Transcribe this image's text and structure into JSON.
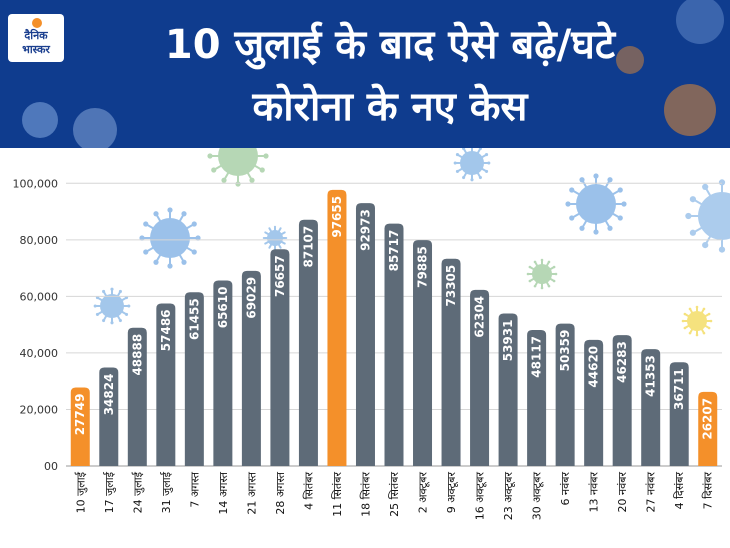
{
  "header": {
    "title_line1": "10 जुलाई के बाद ऐसे बढ़े/घटे",
    "title_line2": "कोरोना के नए केस",
    "logo_line1": "दैनिक",
    "logo_line2": "भास्कर"
  },
  "colors": {
    "header_bg": "#0f3c8e",
    "bar_default": "#5e6b78",
    "bar_highlight": "#f4902a",
    "virus_blue": "#4a90d9",
    "virus_green": "#7cb77a",
    "virus_yellow": "#f2d648"
  },
  "chart_data": {
    "type": "bar",
    "title": "10 जुलाई के बाद ऐसे बढ़े/घटे कोरोना के नए केस",
    "xlabel": "",
    "ylabel": "",
    "ylim": [
      0,
      110000
    ],
    "yticks": [
      0,
      20000,
      40000,
      60000,
      80000,
      100000
    ],
    "ytick_labels": [
      "00",
      "20,000",
      "40,000",
      "60,000",
      "80,000",
      "100,000"
    ],
    "grid": true,
    "categories": [
      "10 जुलाई",
      "17 जुलाई",
      "24 जुलाई",
      "31 जुलाई",
      "7 अगस्त",
      "14 अगस्त",
      "21 अगस्त",
      "28 अगस्त",
      "4 सितंबर",
      "11 सितंबर",
      "18 सितंबर",
      "25 सितंबर",
      "2 अक्टूबर",
      "9 अक्टूबर",
      "16 अक्टूबर",
      "23 अक्टूबर",
      "30 अक्टूबर",
      "6 नवंबर",
      "13 नवंबर",
      "20 नवंबर",
      "27 नवंबर",
      "4 दिसंबर",
      "7 दिसंबर"
    ],
    "values": [
      27749,
      34824,
      48888,
      57486,
      61455,
      65610,
      69029,
      76657,
      87107,
      97655,
      92973,
      85717,
      79885,
      73305,
      62304,
      53931,
      48117,
      50359,
      44620,
      46283,
      41353,
      36711,
      26207
    ],
    "value_labels": [
      "27749",
      "34824",
      "48888",
      "57486",
      "61455",
      "65610",
      "69029",
      "76657",
      "87107",
      "97655",
      "92973",
      "85717",
      "79885",
      "73305",
      "62304",
      "53931",
      "48117",
      "50359",
      "44620",
      "46283",
      "41353",
      "36711",
      "26207"
    ],
    "highlighted": [
      "10 जुलाई",
      "11 सितंबर",
      "7 दिसंबर"
    ]
  }
}
